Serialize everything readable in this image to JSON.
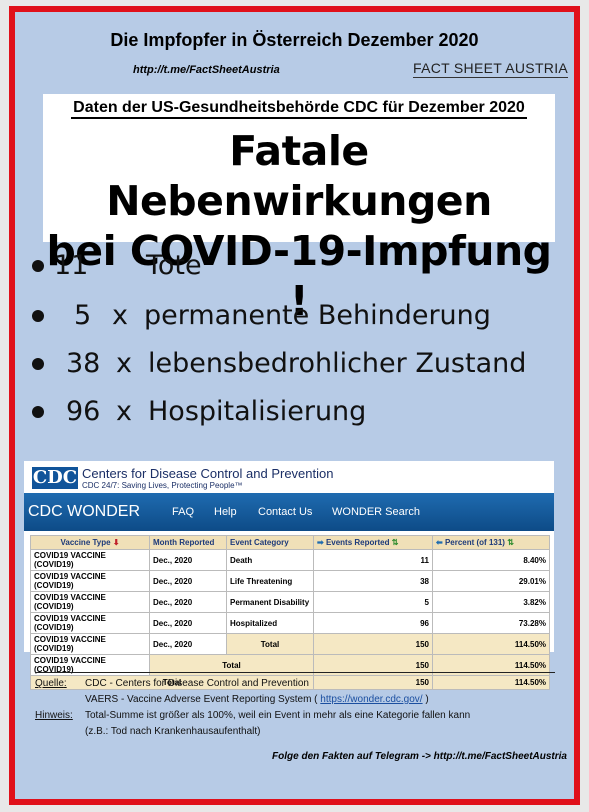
{
  "header": {
    "title": "Die Impfopfer in Österreich Dezember 2020",
    "link": "http://t.me/FactSheetAustria",
    "brand": "FACT SHEET AUSTRIA"
  },
  "headline_box": {
    "subheading": "Daten der US-Gesundheitsbehörde CDC für Dezember 2020",
    "line1": "Fatale Nebenwirkungen",
    "line2": "bei COVID-19-Impfung !"
  },
  "bullets": [
    {
      "number": "11",
      "multiplier": "",
      "text": "Tote"
    },
    {
      "number": "5",
      "multiplier": "x",
      "text": "permanente Behinderung"
    },
    {
      "number": "38",
      "multiplier": "x",
      "text": "lebensbedrohlicher Zustand"
    },
    {
      "number": "96",
      "multiplier": "x",
      "text": "Hospitalisierung"
    }
  ],
  "cdc": {
    "logo": "CDC",
    "name": "Centers for Disease Control and Prevention",
    "tagline": "CDC 24/7: Saving Lives, Protecting People™",
    "nav": {
      "brand": "CDC WONDER",
      "faq": "FAQ",
      "help": "Help",
      "contact": "Contact Us",
      "search": "WONDER Search"
    },
    "table": {
      "headers": {
        "vaccine": "Vaccine Type",
        "month": "Month Reported",
        "category": "Event Category",
        "events": "Events Reported",
        "percent": "Percent (of 131)"
      },
      "header_icons": {
        "vaccine": "⬇",
        "events_left": "➡",
        "events_sort": "⇅",
        "percent_left": "⬅",
        "percent_sort": "⇅"
      },
      "rows": [
        {
          "vaccine": "COVID19 VACCINE (COVID19)",
          "month": "Dec., 2020",
          "category": "Death",
          "events": "11",
          "percent": "8.40%"
        },
        {
          "vaccine": "COVID19 VACCINE (COVID19)",
          "month": "Dec., 2020",
          "category": "Life Threatening",
          "events": "38",
          "percent": "29.01%"
        },
        {
          "vaccine": "COVID19 VACCINE (COVID19)",
          "month": "Dec., 2020",
          "category": "Permanent Disability",
          "events": "5",
          "percent": "3.82%"
        },
        {
          "vaccine": "COVID19 VACCINE (COVID19)",
          "month": "Dec., 2020",
          "category": "Hospitalized",
          "events": "96",
          "percent": "73.28%"
        }
      ],
      "month_total": {
        "vaccine": "COVID19 VACCINE (COVID19)",
        "month": "Dec., 2020",
        "label": "Total",
        "events": "150",
        "percent": "114.50%"
      },
      "vaccine_total": {
        "vaccine": "COVID19 VACCINE (COVID19)",
        "label": "Total",
        "events": "150",
        "percent": "114.50%"
      },
      "grand_total": {
        "label": "Total",
        "events": "150",
        "percent": "114.50%"
      }
    }
  },
  "notes": {
    "source_label": "Quelle",
    "source_line1": "CDC - Centers for Disease Control and Prevention",
    "source_line2_prefix": "VAERS - Vaccine Adverse Event Reporting System (",
    "source_url": "https://wonder.cdc.gov/",
    "source_line2_suffix": ")",
    "hint_label": "Hinweis",
    "hint_line1": "Total-Summe ist größer als 100%, weil ein Event in mehr als eine Kategorie fallen kann",
    "hint_line2": "(z.B.: Tod nach Krankenhausaufenthalt)"
  },
  "footer": "Folge den Fakten auf Telegram  ->  http://t.me/FactSheetAustria",
  "colors": {
    "frame": "#e0101a",
    "background": "#b7cbe6",
    "cdc_blue": "#10549a"
  }
}
